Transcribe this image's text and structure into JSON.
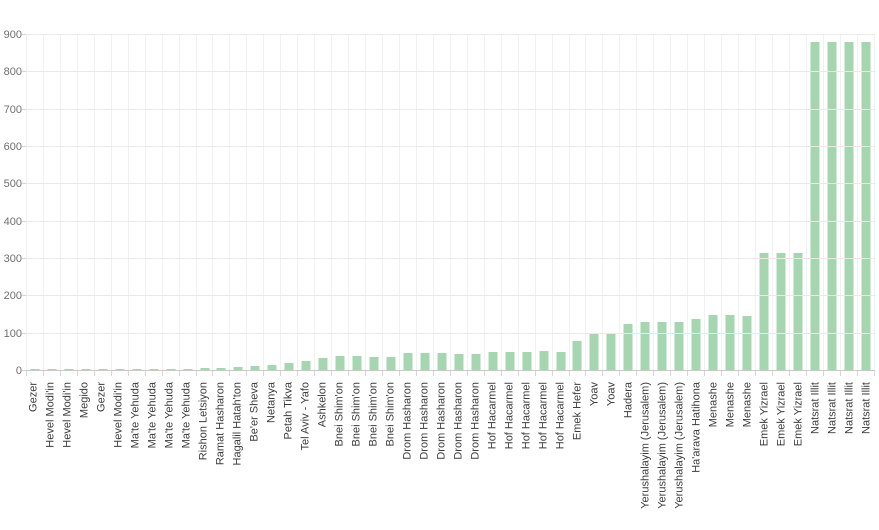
{
  "chart_data": {
    "type": "bar",
    "title": "",
    "xlabel": "",
    "ylabel": "",
    "ylim": [
      0,
      900
    ],
    "yticks": [
      0,
      100,
      200,
      300,
      400,
      500,
      600,
      700,
      800,
      900
    ],
    "grid": true,
    "legend": "none",
    "categories": [
      "Gezer",
      "Hevel Modi'in",
      "Hevel Modi'in",
      "Megido",
      "Gezer",
      "Hevel Modi'in",
      "Ma'te Yehuda",
      "Ma'te Yehuda",
      "Ma'te Yehuda",
      "Ma'te Yehuda",
      "Rishon Letsiyon",
      "Ramat Hasharon",
      "Hagalil Hatah'ton",
      "Be'er Sheva",
      "Netanya",
      "Petah Tikva",
      "Tel Aviv - Yafo",
      "Ashkelon",
      "Bnei Shim'on",
      "Bnei Shim'on",
      "Bnei Shim'on",
      "Bnei Shim'on",
      "Drom Hasharon",
      "Drom Hasharon",
      "Drom Hasharon",
      "Drom Hasharon",
      "Drom Hasharon",
      "Hof Hacarmel",
      "Hof Hacarmel",
      "Hof Hacarmel",
      "Hof Hacarmel",
      "Hof Hacarmel",
      "Emek Hefer",
      "Yoav",
      "Yoav",
      "Hadera",
      "Yerushalayim (Jerusalem)",
      "Yerushalayim (Jerusalem)",
      "Yerushalayim (Jerusalem)",
      "Ha'arava Hatihona",
      "Menashe",
      "Menashe",
      "Menashe",
      "Emek Yizrael",
      "Emek Yizrael",
      "Emek Yizrael",
      "Natsrat Illit",
      "Natsrat Illit",
      "Natsrat Illit",
      "Natsrat Illit"
    ],
    "values": [
      4,
      4,
      4,
      4,
      5,
      5,
      5,
      5,
      5,
      5,
      7,
      8,
      11,
      13,
      16,
      22,
      27,
      36,
      41,
      41,
      38,
      38,
      48,
      48,
      48,
      46,
      46,
      52,
      52,
      52,
      53,
      52,
      80,
      98,
      100,
      127,
      131,
      131,
      130,
      138,
      150,
      150,
      148,
      317,
      317,
      315,
      880,
      880,
      880,
      880
    ],
    "colors": {
      "bar_fill": "#a5d6af",
      "gridline": "#e9e9e9",
      "vertical_gridline": "#f1f1f1",
      "axis_baseline": "#c9c9c9",
      "tick_mark": "#d6d6d6",
      "y_label_text": "#6f6f6f",
      "x_label_text": "#3d3d3d",
      "background": "#ffffff"
    }
  }
}
